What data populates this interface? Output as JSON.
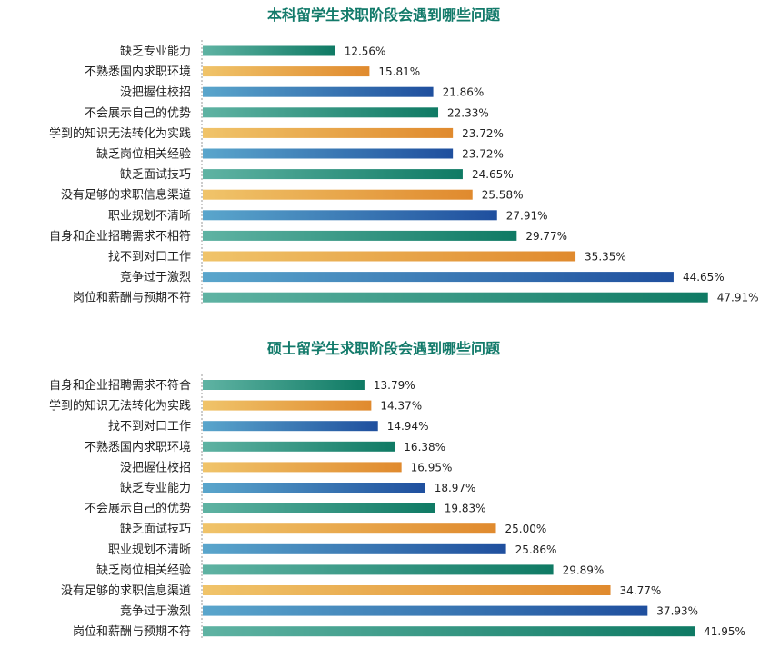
{
  "colors": {
    "title": "#127a6a",
    "teal": [
      "#5fb3a3",
      "#0f7a64"
    ],
    "orange": [
      "#f0c46a",
      "#e08a2e"
    ],
    "blue": [
      "#5aa6cc",
      "#1f4f9e"
    ],
    "axis": "#999999"
  },
  "chart_data": [
    {
      "type": "bar",
      "orientation": "horizontal",
      "title": "本科留学生求职阶段会遇到哪些问题",
      "xlim": [
        0,
        50
      ],
      "unit": "%",
      "categories": [
        "缺乏专业能力",
        "不熟悉国内求职环境",
        "没把握住校招",
        "不会展示自己的优势",
        "学到的知识无法转化为实践",
        "缺乏岗位相关经验",
        "缺乏面试技巧",
        "没有足够的求职信息渠道",
        "职业规划不清晰",
        "自身和企业招聘需求不相符",
        "找不到对口工作",
        "竞争过于激烈",
        "岗位和薪酬与预期不符"
      ],
      "values": [
        12.56,
        15.81,
        21.86,
        22.33,
        23.72,
        23.72,
        24.65,
        25.58,
        27.91,
        29.77,
        35.35,
        44.65,
        47.91
      ],
      "value_labels": [
        "12.56%",
        "15.81%",
        "21.86%",
        "22.33%",
        "23.72%",
        "23.72%",
        "24.65%",
        "25.58%",
        "27.91%",
        "29.77%",
        "35.35%",
        "44.65%",
        "47.91%"
      ]
    },
    {
      "type": "bar",
      "orientation": "horizontal",
      "title": "硕士留学生求职阶段会遇到哪些问题",
      "xlim": [
        0,
        50
      ],
      "unit": "%",
      "categories": [
        "自身和企业招聘需求不符合",
        "学到的知识无法转化为实践",
        "找不到对口工作",
        "不熟悉国内求职环境",
        "没把握住校招",
        "缺乏专业能力",
        "不会展示自己的优势",
        "缺乏面试技巧",
        "职业规划不清晰",
        "缺乏岗位相关经验",
        "没有足够的求职信息渠道",
        "竞争过于激烈",
        "岗位和薪酬与预期不符"
      ],
      "values": [
        13.79,
        14.37,
        14.94,
        16.38,
        16.95,
        18.97,
        19.83,
        25.0,
        25.86,
        29.89,
        34.77,
        37.93,
        41.95
      ],
      "value_labels": [
        "13.79%",
        "14.37%",
        "14.94%",
        "16.38%",
        "16.95%",
        "18.97%",
        "19.83%",
        "25.00%",
        "25.86%",
        "29.89%",
        "34.77%",
        "37.93%",
        "41.95%"
      ]
    }
  ]
}
